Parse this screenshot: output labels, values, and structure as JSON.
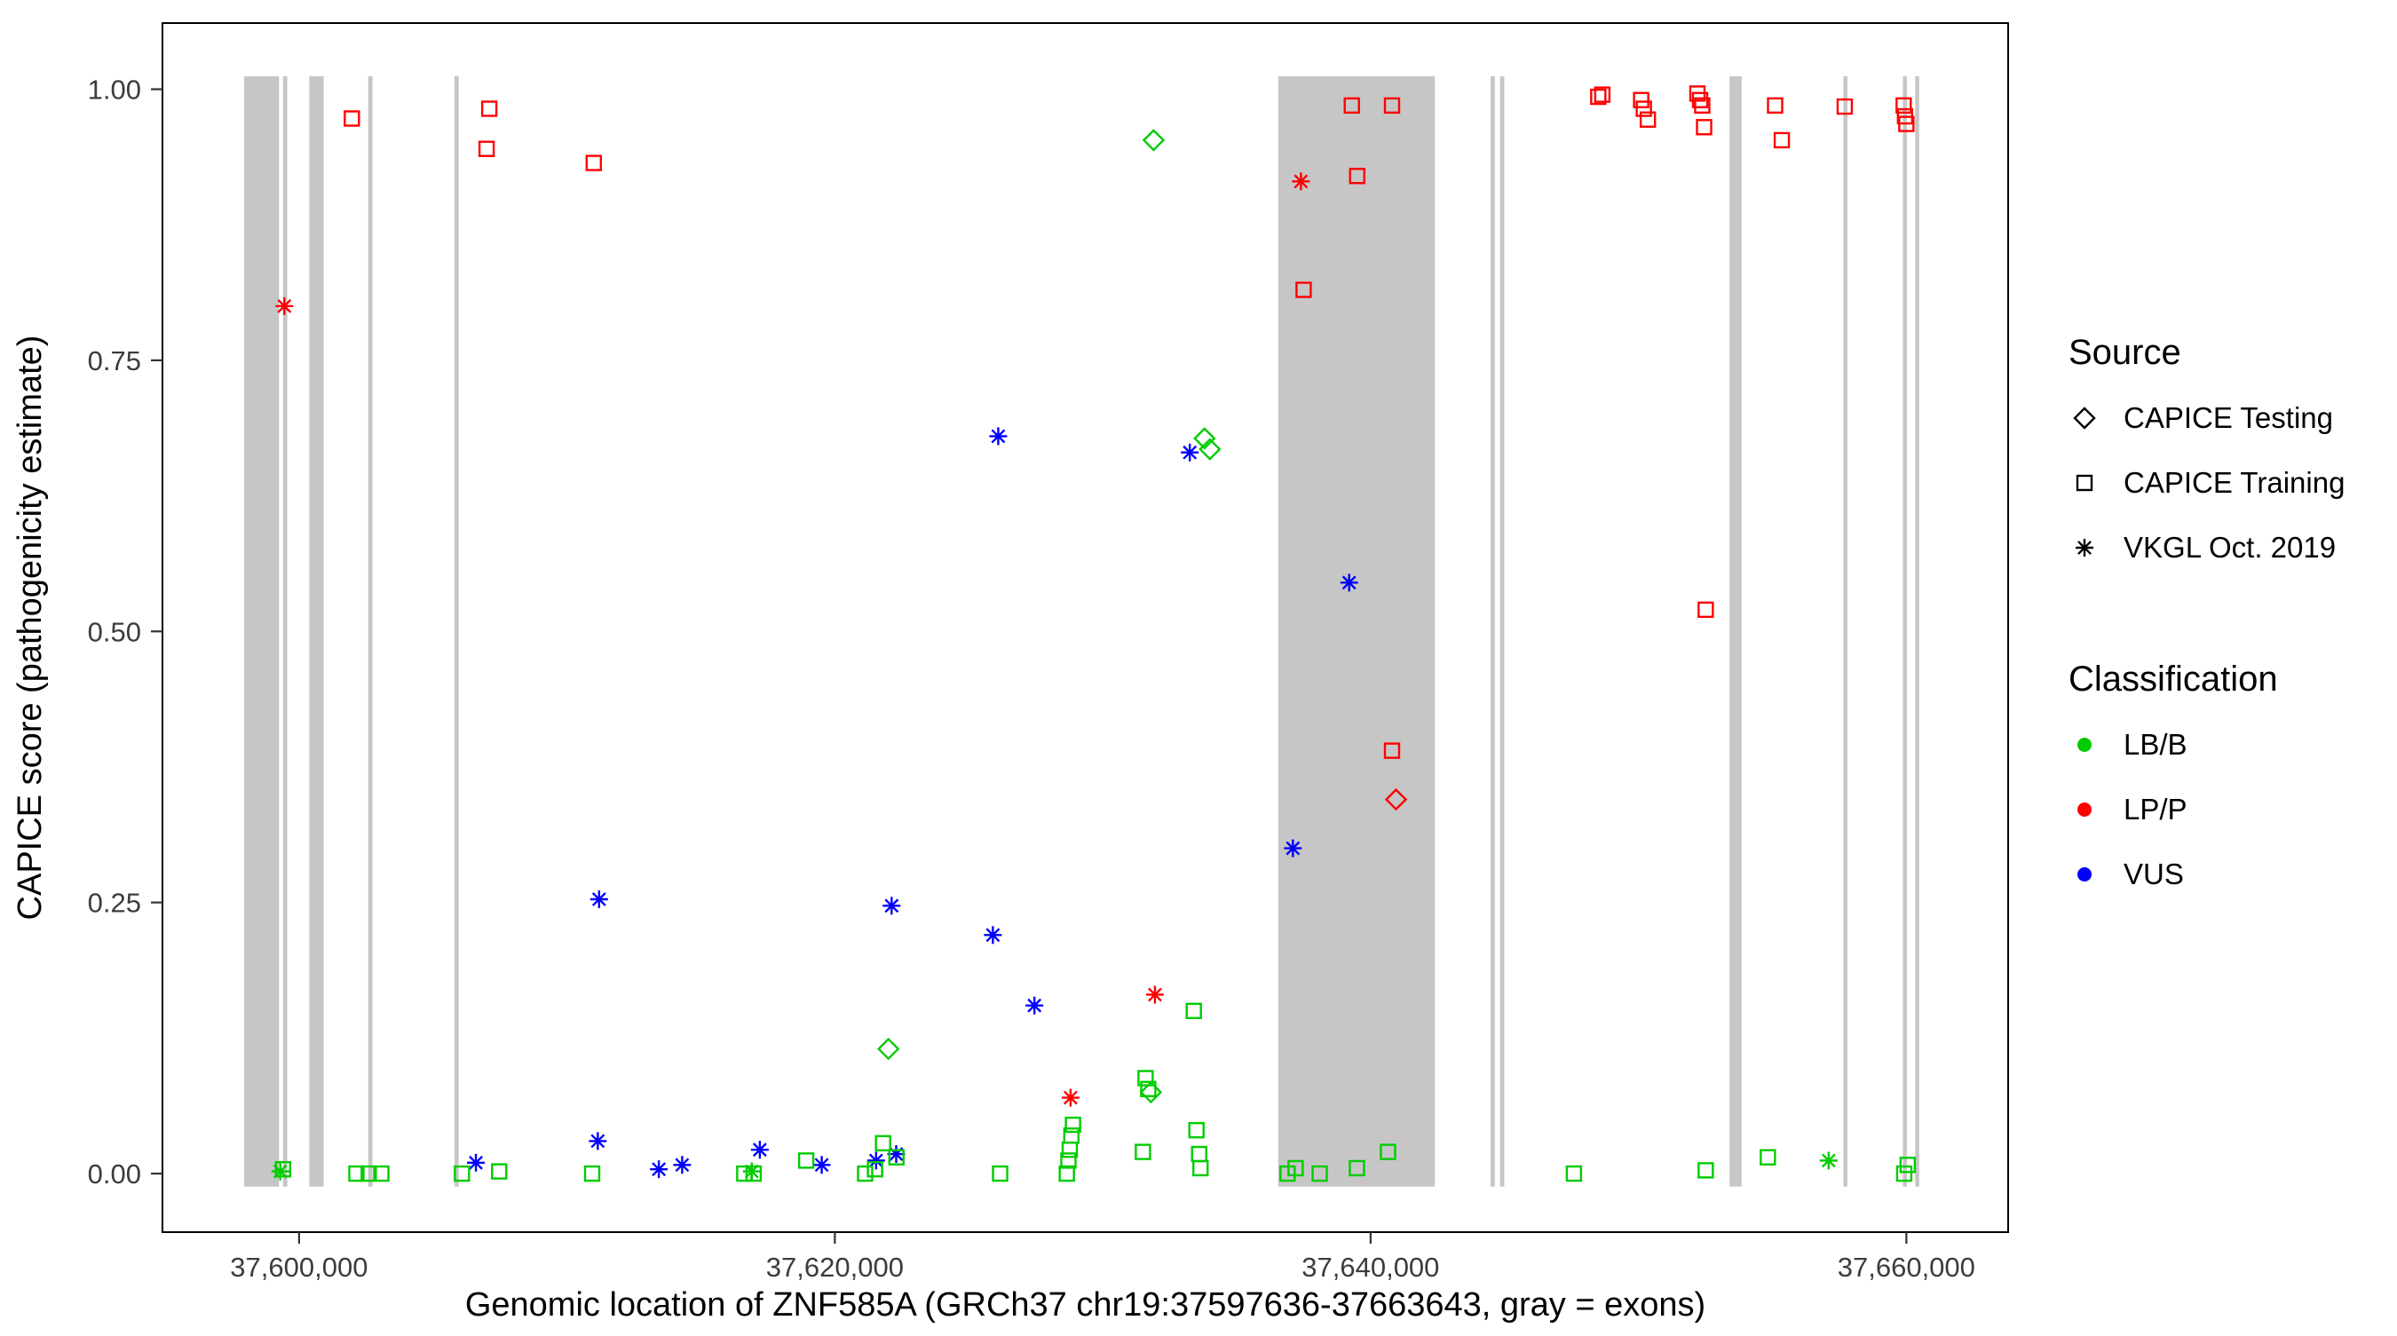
{
  "chart_data": {
    "type": "scatter",
    "title": "",
    "xlabel": "Genomic location of ZNF585A (GRCh37 chr19:37597636-37663643, gray = exons)",
    "ylabel": "CAPICE score (pathogenicity estimate)",
    "xlim": [
      37594900,
      37663800
    ],
    "ylim": [
      -0.054,
      1.061
    ],
    "grid": "off",
    "x_ticks": [
      {
        "value": 37600000,
        "label": "37,600,000"
      },
      {
        "value": 37620000,
        "label": "37,620,000"
      },
      {
        "value": 37640000,
        "label": "37,640,000"
      },
      {
        "value": 37660000,
        "label": "37,660,000"
      }
    ],
    "y_ticks": [
      {
        "value": 0.0,
        "label": "0.00"
      },
      {
        "value": 0.25,
        "label": "0.25"
      },
      {
        "value": 0.5,
        "label": "0.50"
      },
      {
        "value": 0.75,
        "label": "0.75"
      },
      {
        "value": 1.0,
        "label": "1.00"
      }
    ],
    "exon_color": "#c6c6c6",
    "exons": [
      [
        37597950,
        37599250
      ],
      [
        37599400,
        37599560
      ],
      [
        37600380,
        37600920
      ],
      [
        37602580,
        37602740
      ],
      [
        37605800,
        37605960
      ],
      [
        37636550,
        37642400
      ],
      [
        37644480,
        37644640
      ],
      [
        37644830,
        37644990
      ],
      [
        37653400,
        37653850
      ],
      [
        37657650,
        37657800
      ],
      [
        37659870,
        37660020
      ],
      [
        37660330,
        37660480
      ]
    ],
    "legend": {
      "source_title": "Source",
      "source_items": [
        {
          "key": "testing",
          "label": "CAPICE Testing",
          "shape": "diamond"
        },
        {
          "key": "training",
          "label": "CAPICE Training",
          "shape": "square"
        },
        {
          "key": "vkgl",
          "label": "VKGL Oct. 2019",
          "shape": "asterisk"
        }
      ],
      "class_title": "Classification",
      "class_items": [
        {
          "key": "lbb",
          "label": "LB/B",
          "color": "#00cc00"
        },
        {
          "key": "lpp",
          "label": "LP/P",
          "color": "#ff0000"
        },
        {
          "key": "vus",
          "label": "VUS",
          "color": "#0000ff"
        }
      ]
    },
    "series": [
      {
        "name": "CAPICE Training LP/P",
        "source": "training",
        "classification": "lpp",
        "points": [
          [
            37601970,
            0.973
          ],
          [
            37607100,
            0.982
          ],
          [
            37607000,
            0.945
          ],
          [
            37611000,
            0.932
          ],
          [
            37637500,
            0.815
          ],
          [
            37639300,
            0.985
          ],
          [
            37640800,
            0.985
          ],
          [
            37639500,
            0.92
          ],
          [
            37640800,
            0.39
          ],
          [
            37652510,
            0.52
          ],
          [
            37648500,
            0.993
          ],
          [
            37648650,
            0.995
          ],
          [
            37650100,
            0.99
          ],
          [
            37650200,
            0.982
          ],
          [
            37650350,
            0.972
          ],
          [
            37652200,
            0.996
          ],
          [
            37652300,
            0.99
          ],
          [
            37652380,
            0.985
          ],
          [
            37652450,
            0.965
          ],
          [
            37655100,
            0.985
          ],
          [
            37655350,
            0.953
          ],
          [
            37657700,
            0.984
          ],
          [
            37659900,
            0.985
          ],
          [
            37659950,
            0.975
          ],
          [
            37660000,
            0.968
          ]
        ]
      },
      {
        "name": "VKGL Oct. 2019 LP/P",
        "source": "vkgl",
        "classification": "lpp",
        "points": [
          [
            37599450,
            0.8
          ],
          [
            37637400,
            0.915
          ],
          [
            37631950,
            0.165
          ],
          [
            37628800,
            0.07
          ]
        ]
      },
      {
        "name": "CAPICE Testing LP/P",
        "source": "testing",
        "classification": "lpp",
        "points": [
          [
            37640950,
            0.345
          ]
        ]
      },
      {
        "name": "VKGL Oct. 2019 VUS",
        "source": "vkgl",
        "classification": "vus",
        "points": [
          [
            37626100,
            0.68
          ],
          [
            37633250,
            0.665
          ],
          [
            37639200,
            0.545
          ],
          [
            37637100,
            0.3
          ],
          [
            37611200,
            0.253
          ],
          [
            37622120,
            0.247
          ],
          [
            37625900,
            0.22
          ],
          [
            37627450,
            0.155
          ],
          [
            37606600,
            0.01
          ],
          [
            37611150,
            0.03
          ],
          [
            37613430,
            0.004
          ],
          [
            37614300,
            0.008
          ],
          [
            37617200,
            0.022
          ],
          [
            37619510,
            0.008
          ],
          [
            37621540,
            0.012
          ],
          [
            37622290,
            0.018
          ]
        ]
      },
      {
        "name": "CAPICE Testing LB/B",
        "source": "testing",
        "classification": "lbb",
        "points": [
          [
            37631900,
            0.953
          ],
          [
            37633800,
            0.678
          ],
          [
            37634000,
            0.668
          ],
          [
            37622000,
            0.115
          ],
          [
            37631800,
            0.075
          ]
        ]
      },
      {
        "name": "VKGL Oct. 2019 LB/B",
        "source": "vkgl",
        "classification": "lbb",
        "points": [
          [
            37599300,
            0.002
          ],
          [
            37616900,
            0.002
          ],
          [
            37657100,
            0.012
          ]
        ]
      },
      {
        "name": "CAPICE Training LB/B",
        "source": "training",
        "classification": "lbb",
        "points": [
          [
            37599400,
            0.004
          ],
          [
            37602140,
            0.0
          ],
          [
            37602600,
            0.0
          ],
          [
            37603070,
            0.0
          ],
          [
            37606080,
            0.0
          ],
          [
            37607470,
            0.002
          ],
          [
            37610940,
            0.0
          ],
          [
            37616620,
            0.0
          ],
          [
            37616970,
            0.0
          ],
          [
            37618930,
            0.012
          ],
          [
            37621130,
            0.0
          ],
          [
            37621500,
            0.004
          ],
          [
            37621800,
            0.028
          ],
          [
            37622300,
            0.015
          ],
          [
            37626170,
            0.0
          ],
          [
            37628660,
            0.0
          ],
          [
            37628720,
            0.012
          ],
          [
            37628770,
            0.022
          ],
          [
            37628830,
            0.035
          ],
          [
            37628890,
            0.045
          ],
          [
            37631500,
            0.02
          ],
          [
            37631600,
            0.088
          ],
          [
            37631700,
            0.078
          ],
          [
            37633400,
            0.15
          ],
          [
            37633500,
            0.04
          ],
          [
            37633600,
            0.018
          ],
          [
            37633650,
            0.005
          ],
          [
            37636900,
            0.0
          ],
          [
            37637200,
            0.005
          ],
          [
            37638100,
            0.0
          ],
          [
            37639490,
            0.005
          ],
          [
            37640650,
            0.02
          ],
          [
            37647590,
            0.0
          ],
          [
            37652510,
            0.003
          ],
          [
            37654830,
            0.015
          ],
          [
            37659920,
            0.0
          ],
          [
            37660050,
            0.008
          ]
        ]
      }
    ]
  }
}
